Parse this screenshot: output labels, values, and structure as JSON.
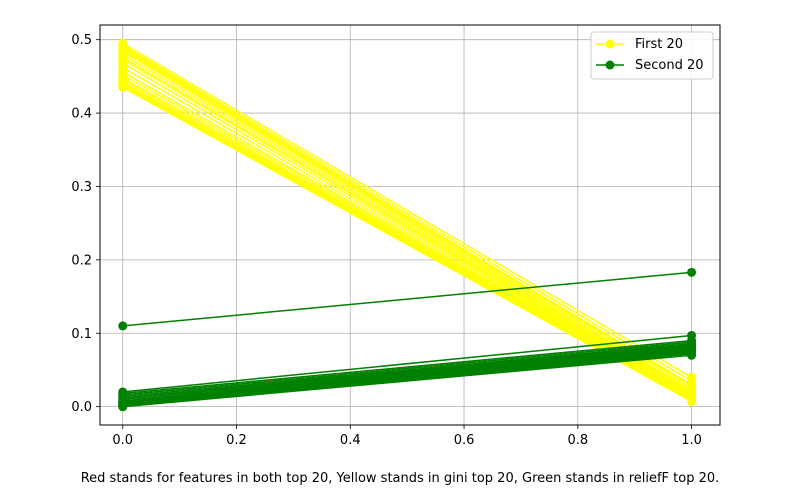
{
  "chart_data": {
    "type": "line",
    "title": "",
    "xlabel": "",
    "ylabel": "",
    "xlim": [
      -0.04,
      1.05
    ],
    "ylim": [
      -0.025,
      0.52
    ],
    "xticks": [
      0.0,
      0.2,
      0.4,
      0.6,
      0.8,
      1.0
    ],
    "xtick_labels": [
      "0.0",
      "0.2",
      "0.4",
      "0.6",
      "0.8",
      "1.0"
    ],
    "yticks": [
      0.0,
      0.1,
      0.2,
      0.3,
      0.4,
      0.5
    ],
    "ytick_labels": [
      "0.0",
      "0.1",
      "0.2",
      "0.3",
      "0.4",
      "0.5"
    ],
    "grid": true,
    "legend_position": "top-right",
    "x": [
      0,
      1
    ],
    "groups": [
      {
        "name": "First 20",
        "color": "#ffff00",
        "lines": [
          [
            0.495,
            0.04
          ],
          [
            0.492,
            0.035
          ],
          [
            0.49,
            0.03
          ],
          [
            0.488,
            0.028
          ],
          [
            0.486,
            0.025
          ],
          [
            0.484,
            0.022
          ],
          [
            0.48,
            0.02
          ],
          [
            0.476,
            0.018
          ],
          [
            0.473,
            0.016
          ],
          [
            0.468,
            0.015
          ],
          [
            0.462,
            0.014
          ],
          [
            0.456,
            0.013
          ],
          [
            0.452,
            0.012
          ],
          [
            0.448,
            0.011
          ],
          [
            0.445,
            0.01
          ],
          [
            0.442,
            0.01
          ],
          [
            0.44,
            0.009
          ],
          [
            0.438,
            0.008
          ],
          [
            0.436,
            0.008
          ],
          [
            0.435,
            0.007
          ]
        ]
      },
      {
        "name": "Second 20",
        "color": "#008000",
        "lines": [
          [
            0.11,
            0.183
          ],
          [
            0.02,
            0.097
          ],
          [
            0.018,
            0.09
          ],
          [
            0.016,
            0.088
          ],
          [
            0.014,
            0.086
          ],
          [
            0.012,
            0.085
          ],
          [
            0.01,
            0.084
          ],
          [
            0.008,
            0.083
          ],
          [
            0.007,
            0.082
          ],
          [
            0.006,
            0.081
          ],
          [
            0.005,
            0.08
          ],
          [
            0.004,
            0.079
          ],
          [
            0.003,
            0.078
          ],
          [
            0.003,
            0.077
          ],
          [
            0.002,
            0.076
          ],
          [
            0.002,
            0.075
          ],
          [
            0.001,
            0.074
          ],
          [
            0.001,
            0.073
          ],
          [
            0.0,
            0.072
          ],
          [
            0.0,
            0.07
          ]
        ]
      }
    ],
    "legend": [
      "First 20",
      "Second 20"
    ]
  },
  "caption": "Red stands for features in both top 20, Yellow stands in gini top 20, Green stands in reliefF top 20."
}
